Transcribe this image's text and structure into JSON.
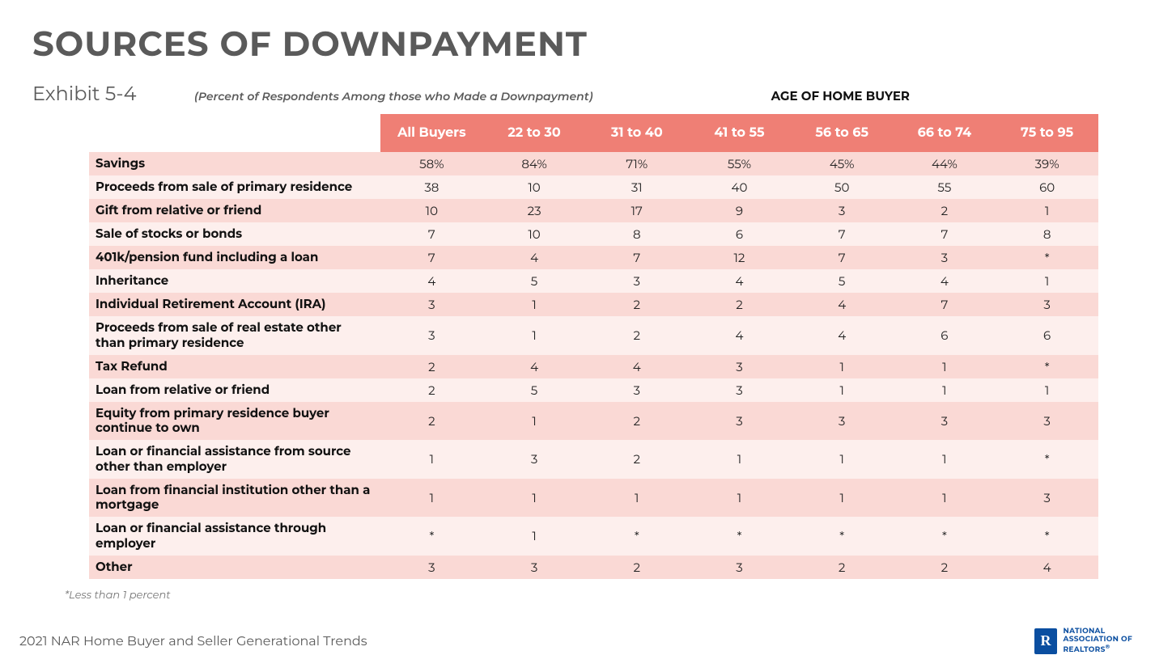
{
  "title": "SOURCES OF DOWNPAYMENT",
  "exhibit": "Exhibit 5-4",
  "subtitle": "(Percent of Respondents Among those who Made a Downpayment)",
  "column_group_label": "AGE OF HOME BUYER",
  "footnote": "*Less than 1 percent",
  "footer": "2021 NAR Home Buyer and Seller Generational Trends",
  "logo": {
    "line1": "NATIONAL",
    "line2": "ASSOCIATION OF",
    "line3": "REALTORS",
    "reg": "®"
  },
  "table": {
    "type": "table",
    "header_bg": "#ef7f75",
    "header_fg": "#ffffff",
    "row_odd_bg": "#fad9d5",
    "row_even_bg": "#fdefed",
    "text_color": "#222222",
    "label_fontweight": 700,
    "cell_fontsize": 15,
    "header_fontsize": 16,
    "columns": [
      "All Buyers",
      "22 to 30",
      "31 to 40",
      "41 to 55",
      "56 to 65",
      "66 to 74",
      "75 to 95"
    ],
    "rows": [
      {
        "label": "Savings",
        "cells": [
          "58%",
          "84%",
          "71%",
          "55%",
          "45%",
          "44%",
          "39%"
        ]
      },
      {
        "label": "Proceeds from sale of primary residence",
        "cells": [
          "38",
          "10",
          "31",
          "40",
          "50",
          "55",
          "60"
        ]
      },
      {
        "label": "Gift from relative or friend",
        "cells": [
          "10",
          "23",
          "17",
          "9",
          "3",
          "2",
          "1"
        ]
      },
      {
        "label": "Sale of stocks or bonds",
        "cells": [
          "7",
          "10",
          "8",
          "6",
          "7",
          "7",
          "8"
        ]
      },
      {
        "label": "401k/pension fund including a loan",
        "cells": [
          "7",
          "4",
          "7",
          "12",
          "7",
          "3",
          "*"
        ]
      },
      {
        "label": "Inheritance",
        "cells": [
          "4",
          "5",
          "3",
          "4",
          "5",
          "4",
          "1"
        ]
      },
      {
        "label": "Individual Retirement Account (IRA)",
        "cells": [
          "3",
          "1",
          "2",
          "2",
          "4",
          "7",
          "3"
        ]
      },
      {
        "label": "Proceeds from sale of real estate other than primary residence",
        "cells": [
          "3",
          "1",
          "2",
          "4",
          "4",
          "6",
          "6"
        ]
      },
      {
        "label": "Tax Refund",
        "cells": [
          "2",
          "4",
          "4",
          "3",
          "1",
          "1",
          "*"
        ]
      },
      {
        "label": "Loan from relative or friend",
        "cells": [
          "2",
          "5",
          "3",
          "3",
          "1",
          "1",
          "1"
        ]
      },
      {
        "label": "Equity from primary residence buyer continue to own",
        "cells": [
          "2",
          "1",
          "2",
          "3",
          "3",
          "3",
          "3"
        ]
      },
      {
        "label": "Loan or financial assistance from source other than employer",
        "cells": [
          "1",
          "3",
          "2",
          "1",
          "1",
          "1",
          "*"
        ]
      },
      {
        "label": "Loan from financial institution other than a mortgage",
        "cells": [
          "1",
          "1",
          "1",
          "1",
          "1",
          "1",
          "3"
        ]
      },
      {
        "label": "Loan or financial assistance through employer",
        "cells": [
          "*",
          "1",
          "*",
          "*",
          "*",
          "*",
          "*"
        ]
      },
      {
        "label": "Other",
        "cells": [
          "3",
          "3",
          "2",
          "3",
          "2",
          "2",
          "4"
        ]
      }
    ]
  }
}
